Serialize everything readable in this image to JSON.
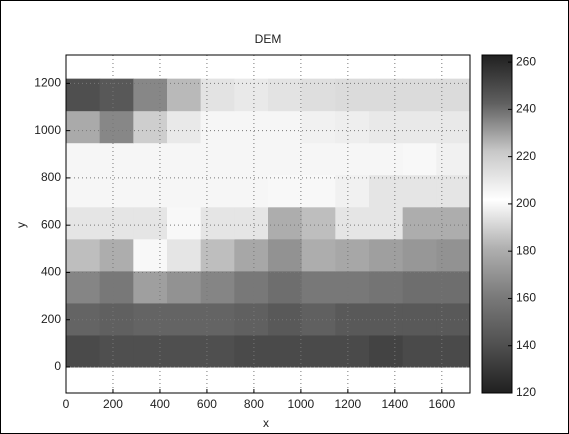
{
  "chart_data": {
    "type": "heatmap",
    "title": "DEM",
    "x_label": "x",
    "y_label": "y",
    "xlim": [
      0,
      1720
    ],
    "ylim": [
      -110,
      1320
    ],
    "xticks": [
      0,
      200,
      400,
      600,
      800,
      1000,
      1200,
      1400,
      1600
    ],
    "yticks": [
      0,
      200,
      400,
      600,
      800,
      1000,
      1200
    ],
    "grid": true,
    "extent": [
      0,
      1720,
      0,
      1220
    ],
    "z": [
      [
        138,
        140,
        140,
        140,
        140,
        138,
        138,
        138,
        138,
        135,
        138,
        138
      ],
      [
        150,
        148,
        150,
        150,
        150,
        148,
        145,
        148,
        145,
        145,
        145,
        145
      ],
      [
        165,
        160,
        175,
        170,
        165,
        160,
        155,
        160,
        160,
        158,
        155,
        155
      ],
      [
        185,
        180,
        200,
        195,
        185,
        178,
        170,
        180,
        178,
        175,
        172,
        170
      ],
      [
        195,
        195,
        195,
        200,
        195,
        195,
        180,
        185,
        195,
        195,
        180,
        180
      ],
      [
        205,
        205,
        205,
        205,
        205,
        205,
        200,
        200,
        198,
        195,
        195,
        195
      ],
      [
        205,
        205,
        205,
        205,
        205,
        205,
        205,
        205,
        205,
        205,
        200,
        198
      ],
      [
        228,
        235,
        220,
        210,
        205,
        205,
        205,
        207,
        208,
        210,
        210,
        210
      ],
      [
        248,
        245,
        235,
        225,
        212,
        210,
        212,
        214,
        215,
        215,
        215,
        215
      ]
    ],
    "clim": [
      120,
      263
    ],
    "cticks": [
      120,
      140,
      160,
      180,
      200,
      220,
      240,
      260
    ],
    "colormap": [
      "#202020",
      "#505050",
      "#7a7a7a",
      "#b0b0b0",
      "#ffffff",
      "#c8c8c8",
      "#606060",
      "#202020"
    ]
  }
}
